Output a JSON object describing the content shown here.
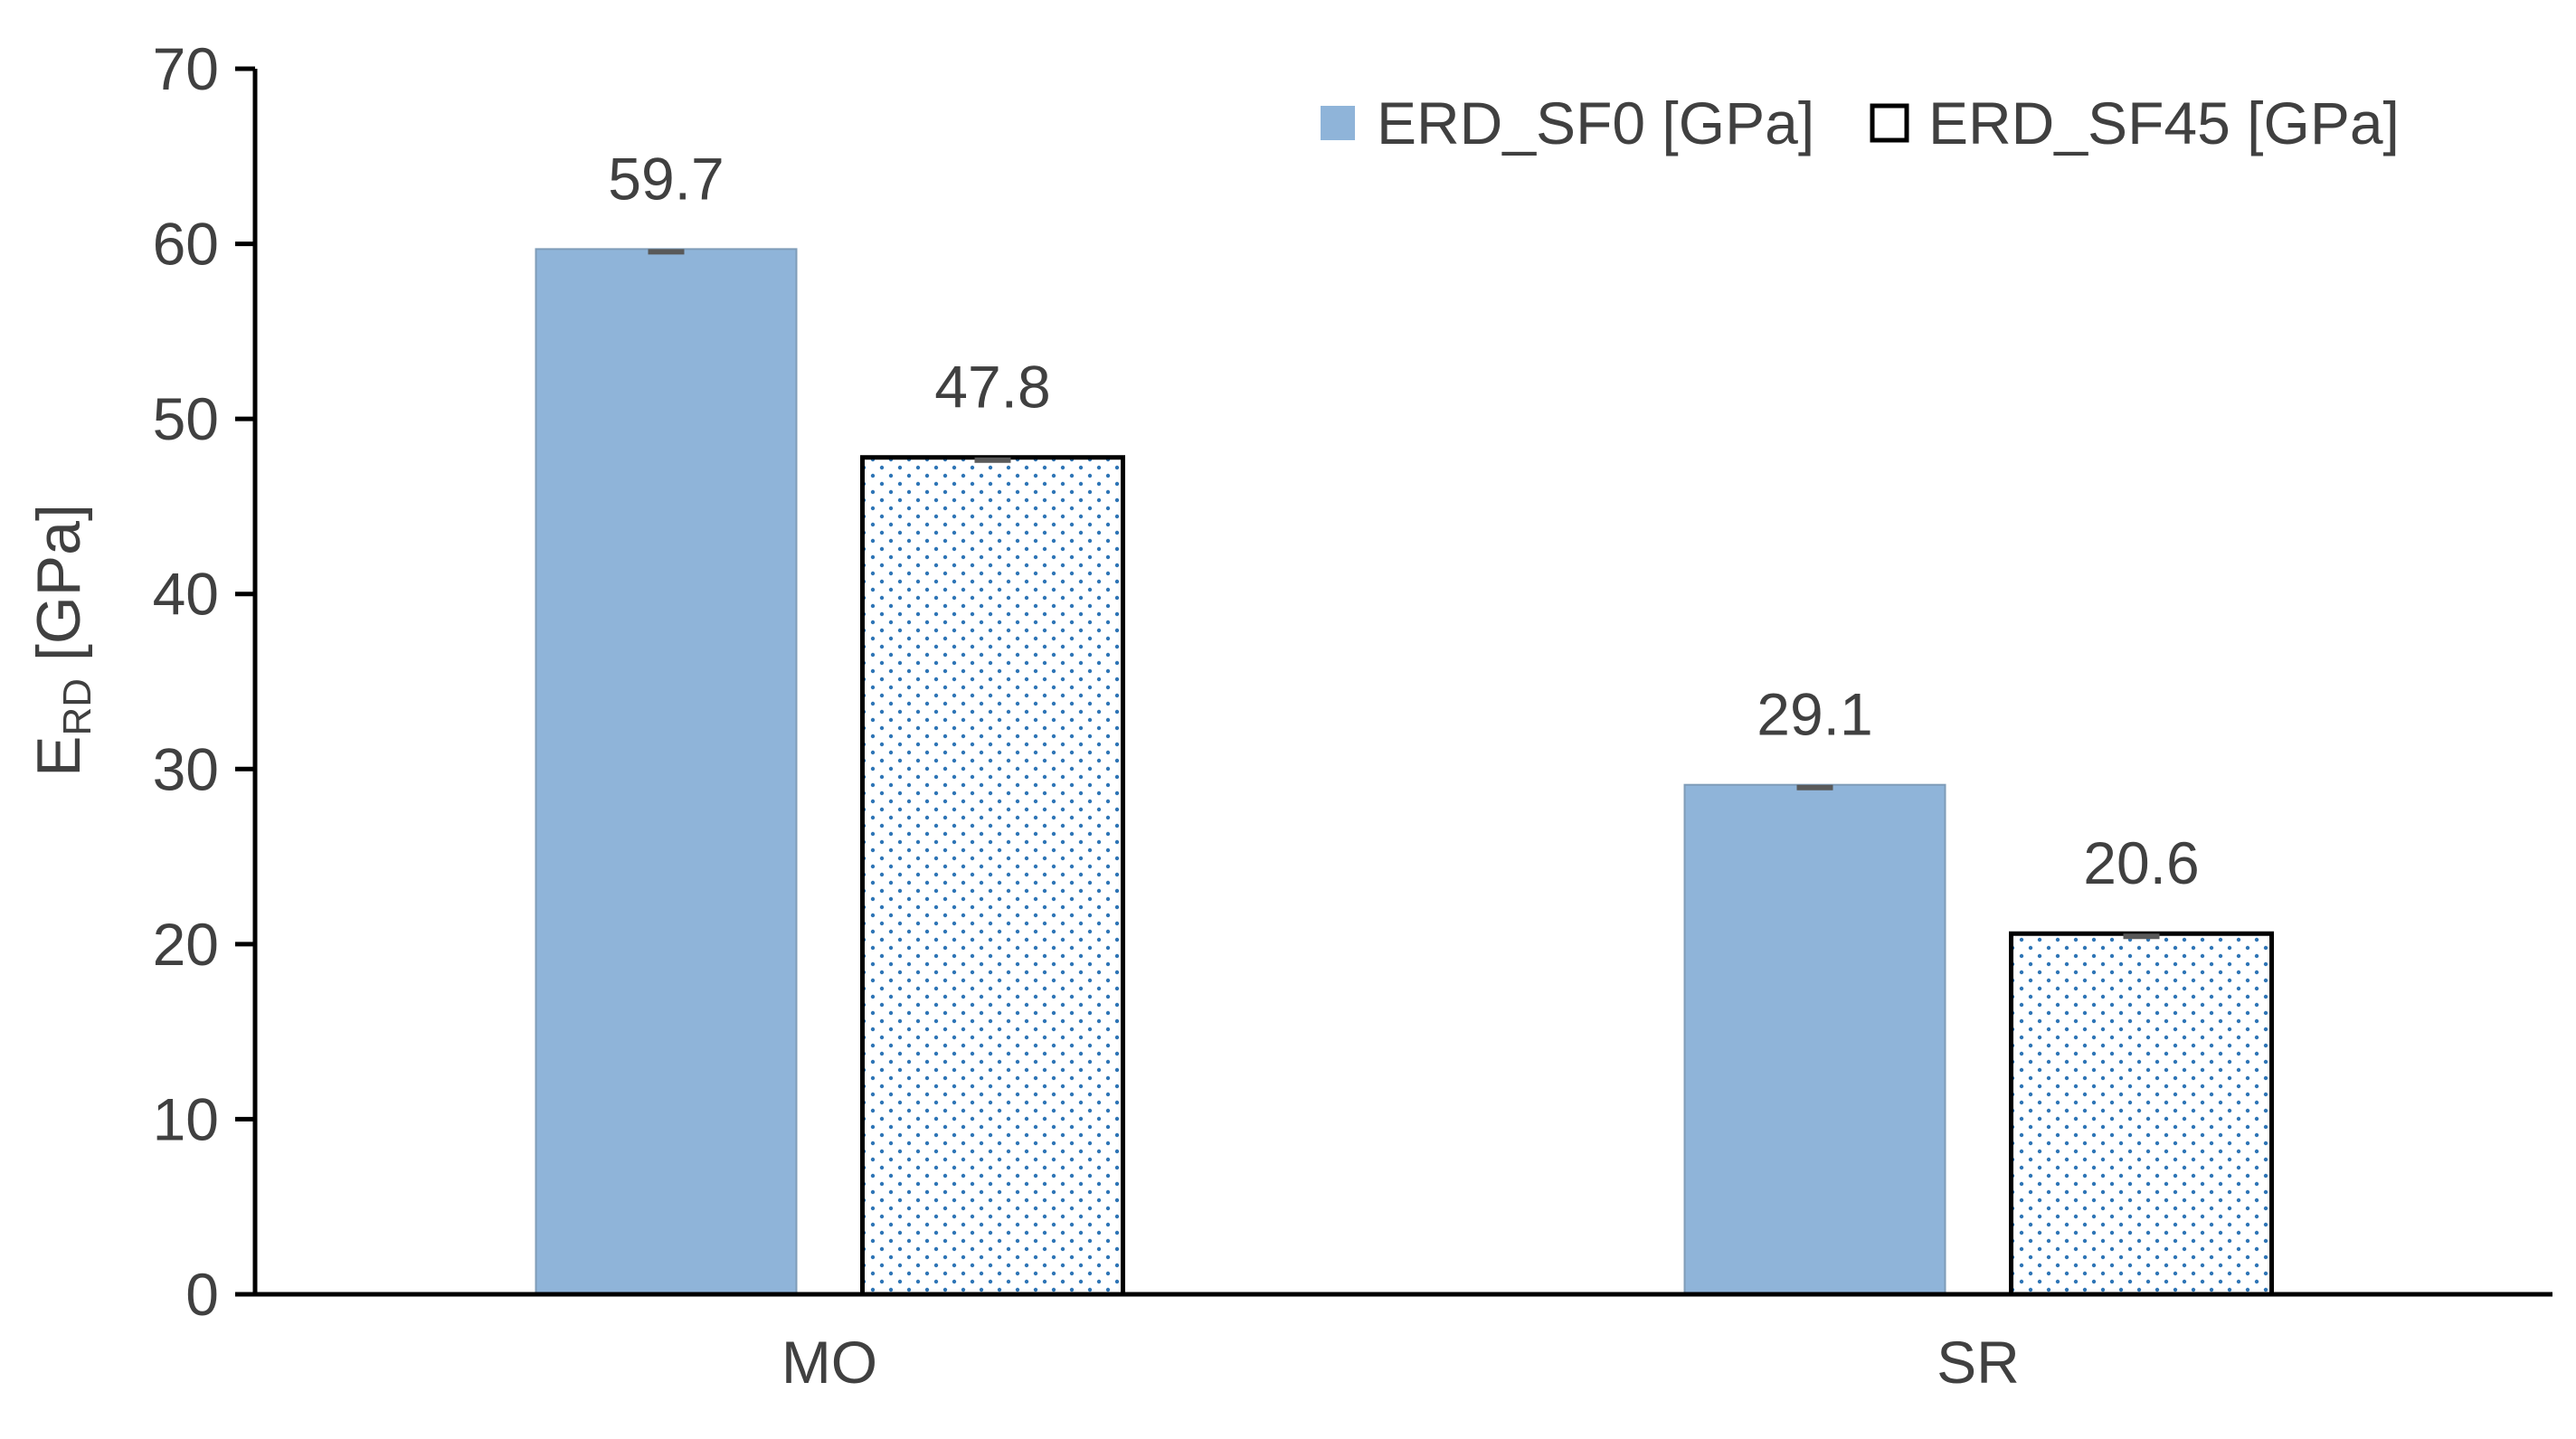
{
  "chart_data": {
    "type": "bar",
    "title": "",
    "categories": [
      "MO",
      "SR"
    ],
    "series": [
      {
        "name": "ERD_SF0 [GPa]",
        "values": [
          59.7,
          29.1
        ],
        "fill": "#8fb4d9",
        "pattern": "solid"
      },
      {
        "name": "ERD_SF45 [GPa]",
        "values": [
          47.8,
          20.6
        ],
        "fill": "#ffffff",
        "dot_color": "#2e75b6",
        "pattern": "dotted"
      }
    ],
    "data_labels": [
      [
        "59.7",
        "29.1"
      ],
      [
        "47.8",
        "20.6"
      ]
    ],
    "ylabel": {
      "main": "E",
      "sub": "RD",
      "unit": " [GPa]"
    },
    "xlabel": "",
    "ylim": [
      0,
      70
    ],
    "yticks": [
      0,
      10,
      20,
      30,
      40,
      50,
      60,
      70
    ],
    "grid": false,
    "legend_position": "top-right",
    "error_bars": true
  }
}
